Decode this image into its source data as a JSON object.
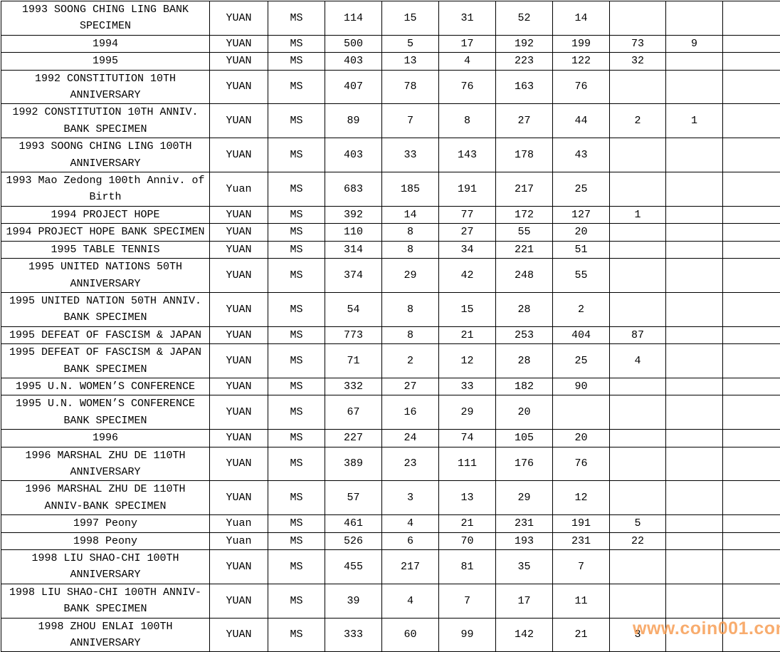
{
  "watermark": {
    "text": "www.coin001.com",
    "color": "#f79646"
  },
  "table": {
    "rows": [
      {
        "description": "1993 SOONG CHING LING BANK\nSPECIMEN",
        "denomination": "YUAN",
        "grade": "MS",
        "values": [
          "114",
          "15",
          "31",
          "52",
          "14",
          "",
          "",
          ""
        ]
      },
      {
        "description": "1994",
        "denomination": "YUAN",
        "grade": "MS",
        "values": [
          "500",
          "5",
          "17",
          "192",
          "199",
          "73",
          "9",
          ""
        ]
      },
      {
        "description": "1995",
        "denomination": "YUAN",
        "grade": "MS",
        "values": [
          "403",
          "13",
          "4",
          "223",
          "122",
          "32",
          "",
          ""
        ]
      },
      {
        "description": "1992 CONSTITUTION 10TH\nANNIVERSARY",
        "denomination": "YUAN",
        "grade": "MS",
        "values": [
          "407",
          "78",
          "76",
          "163",
          "76",
          "",
          "",
          ""
        ]
      },
      {
        "description": "1992 CONSTITUTION 10TH ANNIV.\nBANK SPECIMEN",
        "denomination": "YUAN",
        "grade": "MS",
        "values": [
          "89",
          "7",
          "8",
          "27",
          "44",
          "2",
          "1",
          ""
        ]
      },
      {
        "description": "1993 SOONG CHING LING 100TH\nANNIVERSARY",
        "denomination": "YUAN",
        "grade": "MS",
        "values": [
          "403",
          "33",
          "143",
          "178",
          "43",
          "",
          "",
          ""
        ]
      },
      {
        "description": "1993 Mao Zedong 100th Anniv. of\nBirth",
        "denomination": "Yuan",
        "grade": "MS",
        "values": [
          "683",
          "185",
          "191",
          "217",
          "25",
          "",
          "",
          ""
        ]
      },
      {
        "description": "1994 PROJECT HOPE",
        "denomination": "YUAN",
        "grade": "MS",
        "values": [
          "392",
          "14",
          "77",
          "172",
          "127",
          "1",
          "",
          ""
        ]
      },
      {
        "description": "1994 PROJECT HOPE BANK SPECIMEN",
        "denomination": "YUAN",
        "grade": "MS",
        "values": [
          "110",
          "8",
          "27",
          "55",
          "20",
          "",
          "",
          ""
        ]
      },
      {
        "description": "1995 TABLE TENNIS",
        "denomination": "YUAN",
        "grade": "MS",
        "values": [
          "314",
          "8",
          "34",
          "221",
          "51",
          "",
          "",
          ""
        ]
      },
      {
        "description": "1995 UNITED NATIONS 50TH\nANNIVERSARY",
        "denomination": "YUAN",
        "grade": "MS",
        "values": [
          "374",
          "29",
          "42",
          "248",
          "55",
          "",
          "",
          ""
        ]
      },
      {
        "description": "1995 UNITED NATION 50TH ANNIV.\nBANK SPECIMEN",
        "denomination": "YUAN",
        "grade": "MS",
        "values": [
          "54",
          "8",
          "15",
          "28",
          "2",
          "",
          "",
          ""
        ]
      },
      {
        "description": "1995 DEFEAT OF FASCISM & JAPAN",
        "denomination": "YUAN",
        "grade": "MS",
        "values": [
          "773",
          "8",
          "21",
          "253",
          "404",
          "87",
          "",
          ""
        ]
      },
      {
        "description": "1995 DEFEAT OF FASCISM & JAPAN\nBANK SPECIMEN",
        "denomination": "YUAN",
        "grade": "MS",
        "values": [
          "71",
          "2",
          "12",
          "28",
          "25",
          "4",
          "",
          ""
        ]
      },
      {
        "description": "1995 U.N. WOMEN’S CONFERENCE",
        "denomination": "YUAN",
        "grade": "MS",
        "values": [
          "332",
          "27",
          "33",
          "182",
          "90",
          "",
          "",
          ""
        ]
      },
      {
        "description": "1995 U.N. WOMEN’S CONFERENCE\nBANK SPECIMEN",
        "denomination": "YUAN",
        "grade": "MS",
        "values": [
          "67",
          "16",
          "29",
          "20",
          "",
          "",
          "",
          ""
        ]
      },
      {
        "description": "1996",
        "denomination": "YUAN",
        "grade": "MS",
        "values": [
          "227",
          "24",
          "74",
          "105",
          "20",
          "",
          "",
          ""
        ]
      },
      {
        "description": "1996 MARSHAL ZHU DE 110TH\nANNIVERSARY",
        "denomination": "YUAN",
        "grade": "MS",
        "values": [
          "389",
          "23",
          "111",
          "176",
          "76",
          "",
          "",
          ""
        ]
      },
      {
        "description": "1996 MARSHAL ZHU DE 110TH\nANNIV-BANK SPECIMEN",
        "denomination": "YUAN",
        "grade": "MS",
        "values": [
          "57",
          "3",
          "13",
          "29",
          "12",
          "",
          "",
          ""
        ]
      },
      {
        "description": "1997 Peony",
        "denomination": "Yuan",
        "grade": "MS",
        "values": [
          "461",
          "4",
          "21",
          "231",
          "191",
          "5",
          "",
          ""
        ]
      },
      {
        "description": "1998 Peony",
        "denomination": "Yuan",
        "grade": "MS",
        "values": [
          "526",
          "6",
          "70",
          "193",
          "231",
          "22",
          "",
          ""
        ]
      },
      {
        "description": "1998 LIU SHAO-CHI 100TH\nANNIVERSARY",
        "denomination": "YUAN",
        "grade": "MS",
        "values": [
          "455",
          "217",
          "81",
          "35",
          "7",
          "",
          "",
          ""
        ]
      },
      {
        "description": "1998 LIU SHAO-CHI 100TH ANNIV-\nBANK SPECIMEN",
        "denomination": "YUAN",
        "grade": "MS",
        "values": [
          "39",
          "4",
          "7",
          "17",
          "11",
          "",
          "",
          ""
        ]
      },
      {
        "description": "1998 ZHOU ENLAI 100TH\nANNIVERSARY",
        "denomination": "YUAN",
        "grade": "MS",
        "values": [
          "333",
          "60",
          "99",
          "142",
          "21",
          "3",
          "",
          ""
        ]
      }
    ]
  }
}
